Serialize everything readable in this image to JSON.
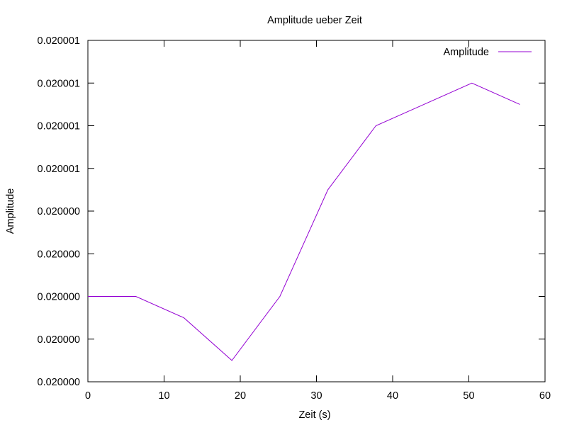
{
  "chart_data": {
    "type": "line",
    "title": "Amplitude ueber Zeit",
    "xlabel": "Zeit (s)",
    "ylabel": "Amplitude",
    "xlim": [
      0,
      60
    ],
    "ylim": [
      0,
      8
    ],
    "x_ticks": [
      0,
      10,
      20,
      30,
      40,
      50,
      60
    ],
    "x_tick_labels": [
      "0",
      "10",
      "20",
      "30",
      "40",
      "50",
      "60"
    ],
    "y_ticks": [
      0,
      1,
      2,
      3,
      4,
      5,
      6,
      7,
      8
    ],
    "y_tick_labels": [
      "0.020000",
      "0.020000",
      "0.020000",
      "0.020000",
      "0.020000",
      "0.020001",
      "0.020001",
      "0.020001",
      "0.020001"
    ],
    "y_value_note": "y values are in units of the tick spacing; tick labels are printed with 6 decimals only",
    "grid": false,
    "legend_position": "top-right",
    "series": [
      {
        "name": "Amplitude",
        "color": "#9400d3",
        "x": [
          0,
          6.3,
          12.6,
          18.9,
          25.2,
          31.5,
          37.8,
          44.1,
          50.4,
          56.7
        ],
        "y": [
          2,
          2,
          1.5,
          0.5,
          2,
          4.5,
          6,
          6.5,
          7,
          6.5
        ]
      }
    ]
  }
}
